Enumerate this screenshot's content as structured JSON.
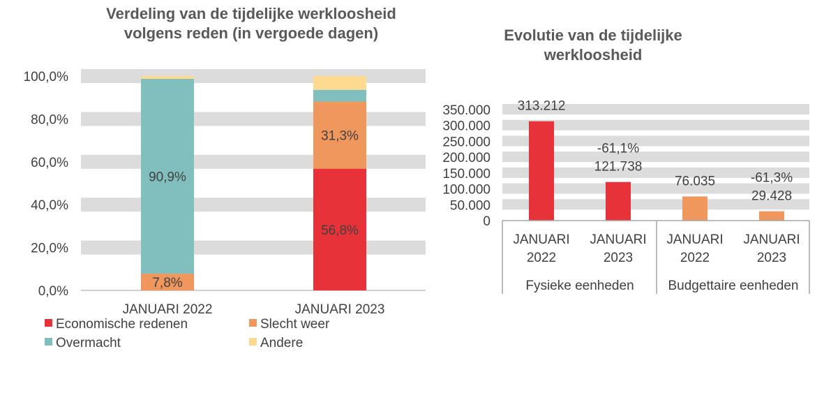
{
  "chart_data": [
    {
      "type": "bar",
      "stacked": true,
      "title": "Verdeling van de tijdelijke werkloosheid volgens reden (in vergoede dagen)",
      "categories": [
        "JANUARI 2022",
        "JANUARI 2023"
      ],
      "series": [
        {
          "name": "Economische redenen",
          "color": "#E8323A",
          "values": [
            0,
            56.8
          ],
          "labels": [
            "",
            "56,8%"
          ]
        },
        {
          "name": "Slecht weer",
          "color": "#F0975E",
          "values": [
            7.8,
            31.3
          ],
          "labels": [
            "7,8%",
            "31,3%"
          ]
        },
        {
          "name": "Overmacht",
          "color": "#80BFBD",
          "values": [
            90.9,
            5.5
          ],
          "labels": [
            "90,9%",
            ""
          ]
        },
        {
          "name": "Andere",
          "color": "#FDDA8F",
          "values": [
            1.3,
            6.4
          ],
          "labels": [
            "",
            ""
          ]
        }
      ],
      "yticks": [
        "0,0%",
        "20,0%",
        "40,0%",
        "60,0%",
        "80,0%",
        "100,0%"
      ],
      "ylim": [
        0,
        100
      ],
      "grid": true,
      "legend": "bottom"
    },
    {
      "type": "bar",
      "title": "Evolutie van de tijdelijke werkloosheid",
      "categories": [
        {
          "line1": "JANUARI",
          "line2": "2022"
        },
        {
          "line1": "JANUARI",
          "line2": "2023"
        },
        {
          "line1": "JANUARI",
          "line2": "2022"
        },
        {
          "line1": "JANUARI",
          "line2": "2023"
        }
      ],
      "groups": [
        "Fysieke eenheden",
        "Budgettaire eenheden"
      ],
      "values": [
        313212,
        121738,
        76035,
        29428
      ],
      "value_labels": [
        "313.212",
        "121.738",
        "76.035",
        "29.428"
      ],
      "change_labels": [
        "",
        "-61,1%",
        "",
        "-61,3%"
      ],
      "colors": [
        "#E8323A",
        "#E8323A",
        "#F0975E",
        "#F0975E"
      ],
      "yticks": [
        "0",
        "50.000",
        "100.000",
        "150.000",
        "200.000",
        "250.000",
        "300.000",
        "350.000"
      ],
      "ylim": [
        0,
        350000
      ],
      "grid": true
    }
  ]
}
